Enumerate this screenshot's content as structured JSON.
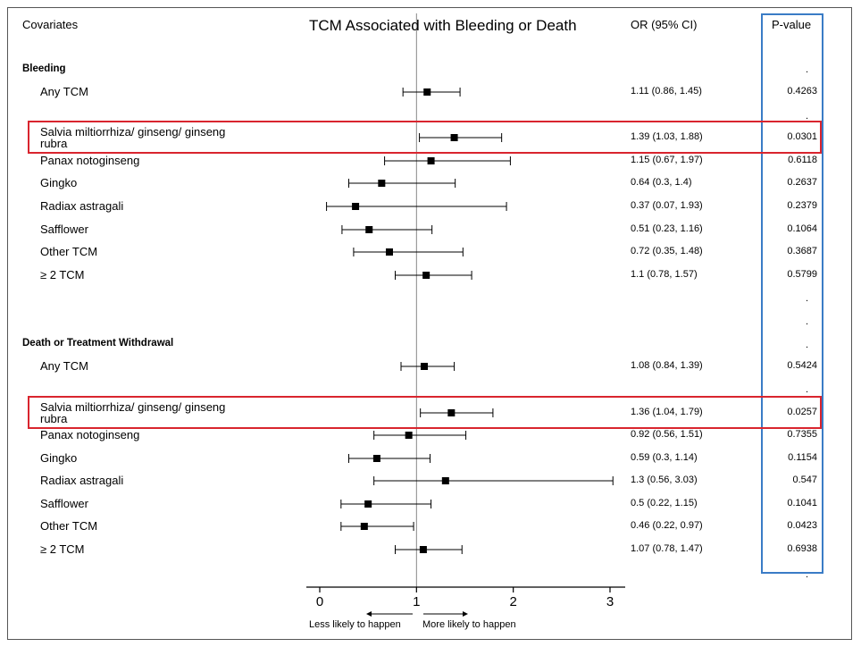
{
  "header": {
    "covariates": "Covariates",
    "title": "TCM Associated with Bleeding or Death",
    "or_ci": "OR (95% CI)",
    "pvalue": "P-value"
  },
  "sections": [
    {
      "label": "Bleeding"
    },
    {
      "label": "Death or Treatment Withdrawal"
    }
  ],
  "chart_data": {
    "type": "forest",
    "title": "TCM Associated with Bleeding or Death",
    "xlim": [
      0,
      3
    ],
    "ticks": [
      0,
      1,
      2,
      3
    ],
    "reference_line": 1,
    "direction_left": "Less likely to happen",
    "direction_right": "More likely to happen",
    "rows": [
      {
        "section": 0,
        "label": "Any TCM",
        "or": 1.11,
        "lo": 0.86,
        "hi": 1.45,
        "or_text": "1.11 (0.86, 1.45)",
        "p": "0.4263",
        "highlight": false
      },
      {
        "section": 0,
        "label": "Salvia miltiorrhiza/ ginseng/ ginseng",
        "label2": "rubra",
        "or": 1.39,
        "lo": 1.03,
        "hi": 1.88,
        "or_text": "1.39 (1.03, 1.88)",
        "p": "0.0301",
        "highlight": true
      },
      {
        "section": 0,
        "label": "Panax notoginseng",
        "or": 1.15,
        "lo": 0.67,
        "hi": 1.97,
        "or_text": "1.15 (0.67, 1.97)",
        "p": "0.6118",
        "highlight": false
      },
      {
        "section": 0,
        "label": "Gingko",
        "or": 0.64,
        "lo": 0.3,
        "hi": 1.4,
        "or_text": "0.64 (0.3, 1.4)",
        "p": "0.2637",
        "highlight": false
      },
      {
        "section": 0,
        "label": "Radiax astragali",
        "or": 0.37,
        "lo": 0.07,
        "hi": 1.93,
        "or_text": "0.37 (0.07, 1.93)",
        "p": "0.2379",
        "highlight": false
      },
      {
        "section": 0,
        "label": "Safflower",
        "or": 0.51,
        "lo": 0.23,
        "hi": 1.16,
        "or_text": "0.51 (0.23, 1.16)",
        "p": "0.1064",
        "highlight": false
      },
      {
        "section": 0,
        "label": "Other TCM",
        "or": 0.72,
        "lo": 0.35,
        "hi": 1.48,
        "or_text": "0.72 (0.35, 1.48)",
        "p": "0.3687",
        "highlight": false
      },
      {
        "section": 0,
        "label": "≥ 2 TCM",
        "or": 1.1,
        "lo": 0.78,
        "hi": 1.57,
        "or_text": "1.1 (0.78, 1.57)",
        "p": "0.5799",
        "highlight": false
      },
      {
        "section": 1,
        "label": "Any TCM",
        "or": 1.08,
        "lo": 0.84,
        "hi": 1.39,
        "or_text": "1.08 (0.84, 1.39)",
        "p": "0.5424",
        "highlight": false
      },
      {
        "section": 1,
        "label": "Salvia miltiorrhiza/ ginseng/ ginseng",
        "label2": "rubra",
        "or": 1.36,
        "lo": 1.04,
        "hi": 1.79,
        "or_text": "1.36 (1.04, 1.79)",
        "p": "0.0257",
        "highlight": true
      },
      {
        "section": 1,
        "label": "Panax notoginseng",
        "or": 0.92,
        "lo": 0.56,
        "hi": 1.51,
        "or_text": "0.92 (0.56, 1.51)",
        "p": "0.7355",
        "highlight": false
      },
      {
        "section": 1,
        "label": "Gingko",
        "or": 0.59,
        "lo": 0.3,
        "hi": 1.14,
        "or_text": "0.59 (0.3, 1.14)",
        "p": "0.1154",
        "highlight": false
      },
      {
        "section": 1,
        "label": "Radiax astragali",
        "or": 1.3,
        "lo": 0.56,
        "hi": 3.03,
        "or_text": "1.3 (0.56, 3.03)",
        "p": "0.547",
        "highlight": false
      },
      {
        "section": 1,
        "label": "Safflower",
        "or": 0.5,
        "lo": 0.22,
        "hi": 1.15,
        "or_text": "0.5 (0.22, 1.15)",
        "p": "0.1041",
        "highlight": false
      },
      {
        "section": 1,
        "label": "Other TCM",
        "or": 0.46,
        "lo": 0.22,
        "hi": 0.97,
        "or_text": "0.46 (0.22, 0.97)",
        "p": "0.0423",
        "highlight": false
      },
      {
        "section": 1,
        "label": "≥  2 TCM",
        "or": 1.07,
        "lo": 0.78,
        "hi": 1.47,
        "or_text": "1.07 (0.78, 1.47)",
        "p": "0.6938",
        "highlight": false
      }
    ]
  },
  "pvalue_dot": ".",
  "colors": {
    "highlight_row": "#d9252e",
    "highlight_column": "#3a7cc6",
    "mark": "#000000"
  }
}
